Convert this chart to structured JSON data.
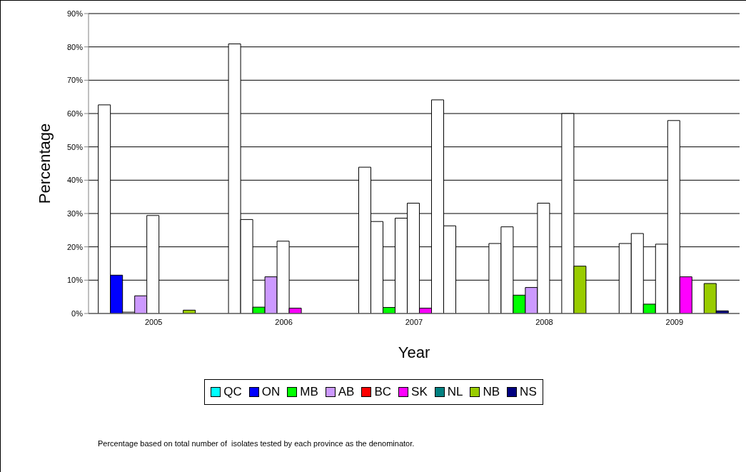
{
  "chart_data": {
    "type": "bar",
    "xlabel": "Year",
    "ylabel": "Percentage",
    "categories": [
      "2005",
      "2006",
      "2007",
      "2008",
      "2009"
    ],
    "series": [
      {
        "name": "QC",
        "color": "#00ffff",
        "values": [
          62.6,
          80.9,
          43.9,
          21.0,
          21.0
        ],
        "colors": [
          "#ffffff",
          "#ffffff",
          "#ffffff",
          "#ffffff",
          "#ffffff"
        ]
      },
      {
        "name": "ON",
        "color": "#0000ff",
        "values": [
          11.5,
          28.2,
          27.6,
          26.0,
          24.0
        ],
        "colors": [
          "#0000ff",
          "#ffffff",
          "#ffffff",
          "#ffffff",
          "#ffffff"
        ]
      },
      {
        "name": "MB",
        "color": "#00ff00",
        "values": [
          0.4,
          1.9,
          1.8,
          5.5,
          2.8
        ],
        "colors": [
          "#ffffff",
          "#00ff00",
          "#00ff00",
          "#00ff00",
          "#00ff00"
        ]
      },
      {
        "name": "AB",
        "color": "#cc99ff",
        "values": [
          5.3,
          11.0,
          28.6,
          7.8,
          20.8
        ],
        "colors": [
          "#cc99ff",
          "#cc99ff",
          "#ffffff",
          "#cc99ff",
          "#ffffff"
        ]
      },
      {
        "name": "BC",
        "color": "#ff0000",
        "values": [
          29.4,
          21.7,
          33.1,
          33.1,
          57.9
        ],
        "colors": [
          "#ffffff",
          "#ffffff",
          "#ffffff",
          "#ffffff",
          "#ffffff"
        ]
      },
      {
        "name": "SK",
        "color": "#ff00ff",
        "values": [
          0,
          1.6,
          1.6,
          0,
          11.0
        ],
        "colors": [
          "#ff00ff",
          "#ff00ff",
          "#ff00ff",
          "#ff00ff",
          "#ff00ff"
        ]
      },
      {
        "name": "NL",
        "color": "#008080",
        "values": [
          0,
          0,
          64.1,
          60.0,
          0
        ],
        "colors": [
          "#008080",
          "#008080",
          "#ffffff",
          "#ffffff",
          "#008080"
        ]
      },
      {
        "name": "NB",
        "color": "#99cc00",
        "values": [
          1.0,
          0,
          26.3,
          14.2,
          9.0
        ],
        "colors": [
          "#99cc00",
          "#99cc00",
          "#ffffff",
          "#99cc00",
          "#99cc00"
        ]
      },
      {
        "name": "NS",
        "color": "#000080",
        "values": [
          0,
          0,
          0,
          0,
          0.8
        ],
        "colors": [
          "#000080",
          "#000080",
          "#000080",
          "#000080",
          "#000080"
        ]
      }
    ],
    "ylim": [
      0,
      90
    ],
    "yticks": [
      {
        "value": 0,
        "label": "0%"
      },
      {
        "value": 10,
        "label": "10%"
      },
      {
        "value": 20,
        "label": "20%"
      },
      {
        "value": 30,
        "label": "30%"
      },
      {
        "value": 40,
        "label": "40%"
      },
      {
        "value": 50,
        "label": "50%"
      },
      {
        "value": 60,
        "label": "60%"
      },
      {
        "value": 70,
        "label": "70%"
      },
      {
        "value": 80,
        "label": "80%"
      },
      {
        "value": 90,
        "label": "90%"
      }
    ],
    "grid": "y",
    "legend": "bottom",
    "annotations": [
      "Percentage based on total number of  isolates tested by each province as the denominator."
    ]
  }
}
